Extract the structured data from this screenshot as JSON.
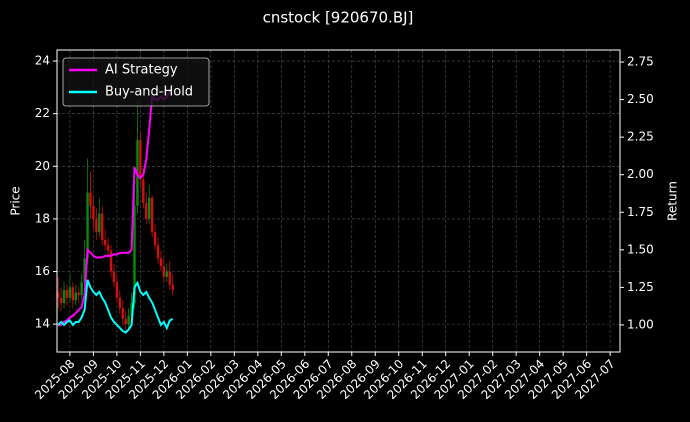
{
  "chart_data": {
    "type": "candlestick",
    "title": "cnstock [920670.BJ]",
    "ylabel": "Price",
    "y2label": "Return",
    "x": [
      -0.5,
      -0.375,
      -0.25,
      -0.125,
      0,
      0.125,
      0.25,
      0.375,
      0.5,
      0.625,
      0.75,
      0.875,
      1,
      1.125,
      1.25,
      1.375,
      1.5,
      1.625,
      1.75,
      1.875,
      2,
      2.125,
      2.25,
      2.375,
      2.5,
      2.625,
      2.75,
      2.875,
      3,
      3.125,
      3.25,
      3.375,
      3.5,
      3.625,
      3.75,
      3.875,
      4,
      4.125,
      4.25,
      4.375
    ],
    "open": [
      15.2,
      15.0,
      14.8,
      15.3,
      15.0,
      15.4,
      14.9,
      15.2,
      15.1,
      15.6,
      16.5,
      19.0,
      18.5,
      18.0,
      17.5,
      18.2,
      17.2,
      17.0,
      16.8,
      16.0,
      15.6,
      15.0,
      14.6,
      14.2,
      14.0,
      14.3,
      14.8,
      18.5,
      21.0,
      19.5,
      18.6,
      18.0,
      18.8,
      17.5,
      17.0,
      16.5,
      16.2,
      15.8,
      16.0,
      15.5
    ],
    "high": [
      15.8,
      15.4,
      15.6,
      15.5,
      15.9,
      15.6,
      15.5,
      15.4,
      15.9,
      17.2,
      20.3,
      19.8,
      18.9,
      18.4,
      18.8,
      18.5,
      17.6,
      17.3,
      17.0,
      16.3,
      15.9,
      15.3,
      14.9,
      14.5,
      14.6,
      15.2,
      19.2,
      22.5,
      21.3,
      19.9,
      19.0,
      19.3,
      18.9,
      17.8,
      17.3,
      16.8,
      16.5,
      16.3,
      16.4,
      15.9
    ],
    "low": [
      14.6,
      14.5,
      14.6,
      14.7,
      14.8,
      14.6,
      14.7,
      14.8,
      14.9,
      15.4,
      16.3,
      18.0,
      17.6,
      17.2,
      17.3,
      17.0,
      16.8,
      16.5,
      15.8,
      15.4,
      14.8,
      14.4,
      14.0,
      13.7,
      13.8,
      14.1,
      14.6,
      18.2,
      19.2,
      18.4,
      17.8,
      17.8,
      17.3,
      16.8,
      16.3,
      16.0,
      15.6,
      15.6,
      15.3,
      15.1
    ],
    "close": [
      15.0,
      14.8,
      15.3,
      15.0,
      15.4,
      14.9,
      15.2,
      15.1,
      15.6,
      16.5,
      19.0,
      18.5,
      18.0,
      17.5,
      18.2,
      17.2,
      17.0,
      16.8,
      16.0,
      15.6,
      15.0,
      14.6,
      14.2,
      14.0,
      14.3,
      14.8,
      18.5,
      21.0,
      19.5,
      18.6,
      18.0,
      18.8,
      17.5,
      17.0,
      16.5,
      16.2,
      15.8,
      16.0,
      15.5,
      15.3
    ],
    "up_color": "#0a8a0a",
    "down_color": "#d01010",
    "series": [
      {
        "name": "AI Strategy",
        "color": "#ff00ff",
        "axis": "y2",
        "values": [
          1.0,
          1.0,
          1.02,
          1.03,
          1.05,
          1.06,
          1.08,
          1.1,
          1.12,
          1.2,
          1.5,
          1.48,
          1.46,
          1.45,
          1.45,
          1.45,
          1.46,
          1.46,
          1.46,
          1.47,
          1.47,
          1.48,
          1.48,
          1.48,
          1.48,
          1.5,
          2.05,
          2.0,
          1.98,
          2.0,
          2.1,
          2.3,
          2.52,
          2.5,
          2.5,
          2.52,
          2.5,
          2.52,
          2.55,
          2.6
        ]
      },
      {
        "name": "Buy-and-Hold",
        "color": "#00ffff",
        "axis": "y2",
        "values": [
          1.0,
          1.02,
          1.0,
          1.02,
          1.03,
          1.0,
          1.02,
          1.02,
          1.05,
          1.1,
          1.3,
          1.25,
          1.22,
          1.2,
          1.22,
          1.18,
          1.15,
          1.1,
          1.05,
          1.02,
          1.0,
          0.98,
          0.96,
          0.95,
          0.97,
          1.0,
          1.25,
          1.28,
          1.22,
          1.2,
          1.22,
          1.18,
          1.15,
          1.1,
          1.05,
          1.0,
          1.02,
          0.98,
          1.03,
          1.04
        ]
      }
    ],
    "xlim": [
      -0.55,
      23.42
    ],
    "xticks": [
      {
        "value": 0,
        "label": "2025-08"
      },
      {
        "value": 1,
        "label": "2025-09"
      },
      {
        "value": 2,
        "label": "2025-10"
      },
      {
        "value": 3,
        "label": "2025-11"
      },
      {
        "value": 4,
        "label": "2025-12"
      },
      {
        "value": 5,
        "label": "2026-01"
      },
      {
        "value": 6,
        "label": "2026-02"
      },
      {
        "value": 7,
        "label": "2026-03"
      },
      {
        "value": 8,
        "label": "2026-04"
      },
      {
        "value": 9,
        "label": "2026-05"
      },
      {
        "value": 10,
        "label": "2026-06"
      },
      {
        "value": 11,
        "label": "2026-07"
      },
      {
        "value": 12,
        "label": "2026-08"
      },
      {
        "value": 13,
        "label": "2026-09"
      },
      {
        "value": 14,
        "label": "2026-10"
      },
      {
        "value": 15,
        "label": "2026-11"
      },
      {
        "value": 16,
        "label": "2026-12"
      },
      {
        "value": 17,
        "label": "2027-01"
      },
      {
        "value": 18,
        "label": "2027-02"
      },
      {
        "value": 19,
        "label": "2027-03"
      },
      {
        "value": 20,
        "label": "2027-04"
      },
      {
        "value": 21,
        "label": "2027-05"
      },
      {
        "value": 22,
        "label": "2027-06"
      },
      {
        "value": 23,
        "label": "2027-07"
      }
    ],
    "ylim": [
      12.94,
      24.42
    ],
    "yticks": [
      14,
      16,
      18,
      20,
      22,
      24
    ],
    "y2lim": [
      0.82,
      2.83
    ],
    "y2ticks": [
      {
        "value": 1,
        "label": "1.00"
      },
      {
        "value": 1.25,
        "label": "1.25"
      },
      {
        "value": 1.5,
        "label": "1.50"
      },
      {
        "value": 1.75,
        "label": "1.75"
      },
      {
        "value": 2,
        "label": "2.00"
      },
      {
        "value": 2.25,
        "label": "2.25"
      },
      {
        "value": 2.5,
        "label": "2.50"
      },
      {
        "value": 2.75,
        "label": "2.75"
      }
    ],
    "grid": true,
    "legend": "upper left"
  }
}
